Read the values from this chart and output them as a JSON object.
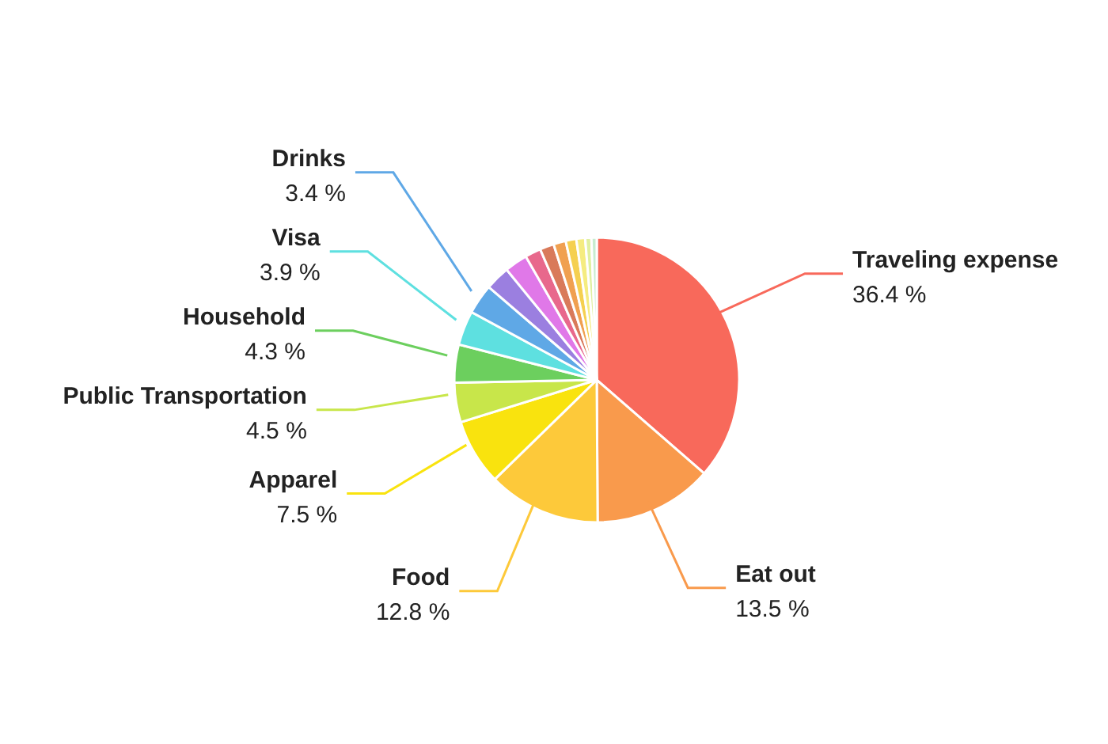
{
  "chart_data": {
    "type": "pie",
    "categories": [
      "Traveling expense",
      "Eat out",
      "Food",
      "Apparel",
      "Public Transportation",
      "Household",
      "Visa",
      "Drinks",
      null,
      null,
      null,
      null,
      null,
      null,
      null,
      null,
      null
    ],
    "values": [
      36.4,
      13.5,
      12.8,
      7.5,
      4.5,
      4.3,
      3.9,
      3.4,
      2.8,
      2.6,
      1.8,
      1.6,
      1.4,
      1.2,
      1.0,
      0.7,
      0.6
    ],
    "value_labels": [
      "36.4 %",
      "13.5 %",
      "12.8 %",
      "7.5 %",
      "4.5 %",
      "4.3 %",
      "3.9 %",
      "3.4 %",
      null,
      null,
      null,
      null,
      null,
      null,
      null,
      null,
      null
    ],
    "colors": [
      "#f8695b",
      "#f99a4c",
      "#fdc93a",
      "#f9e30e",
      "#c8e64a",
      "#6ccf5e",
      "#5ee0e0",
      "#5fa8e6",
      "#9b7fe0",
      "#e078e8",
      "#e8688c",
      "#d97a5a",
      "#f0a050",
      "#f5d050",
      "#f5ec80",
      "#e0f0a0",
      "#c8ecd0"
    ]
  }
}
